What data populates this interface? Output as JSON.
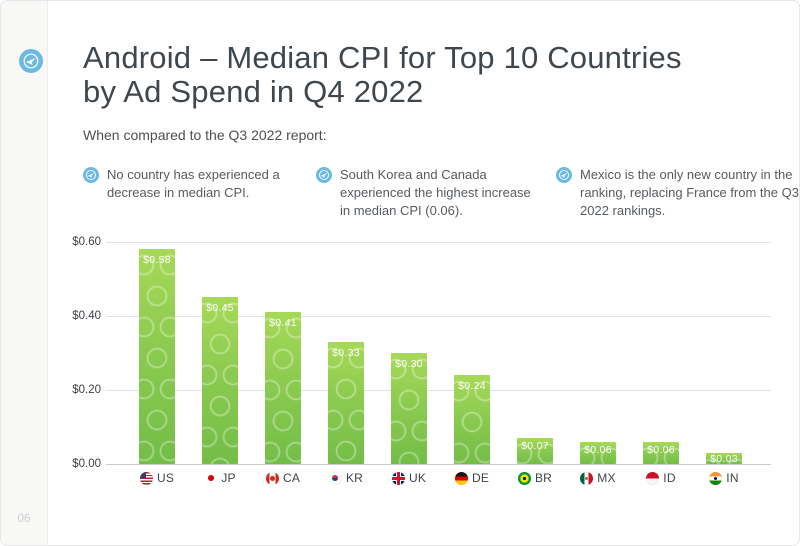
{
  "page": {
    "number": "06",
    "brand_color": "#6cb9e1"
  },
  "header": {
    "title_line1": "Android – Median CPI for Top 10 Countries",
    "title_line2": "by Ad Spend in Q4 2022",
    "subtitle": "When compared to the Q3 2022 report:"
  },
  "insights": [
    {
      "text": "No country has experienced a decrease in median CPI."
    },
    {
      "text": "South Korea and Canada experienced the highest increase in median CPI (0.06)."
    },
    {
      "text": "Mexico is the only new country in the ranking, replacing France from the Q3 2022 rankings."
    }
  ],
  "chart_data": {
    "type": "bar",
    "title": "Android – Median CPI for Top 10 Countries by Ad Spend in Q4 2022",
    "xlabel": "",
    "ylabel": "",
    "categories": [
      "US",
      "JP",
      "CA",
      "KR",
      "UK",
      "DE",
      "BR",
      "MX",
      "ID",
      "IN"
    ],
    "values": [
      0.58,
      0.45,
      0.41,
      0.33,
      0.3,
      0.24,
      0.07,
      0.06,
      0.06,
      0.03
    ],
    "bar_labels": [
      "$0.58",
      "$0.45",
      "$0.41",
      "$0.33",
      "$0.30",
      "$0.24",
      "$0.07",
      "$0.06",
      "$0.06",
      "$0.03"
    ],
    "y_tick_labels": [
      "$0.60",
      "$0.40",
      "$0.20",
      "$0.00"
    ],
    "ylim": [
      0,
      0.6
    ],
    "grid": true,
    "legend": "none",
    "bar_color_top": "#a7d957",
    "bar_color_bottom": "#73bd48"
  }
}
